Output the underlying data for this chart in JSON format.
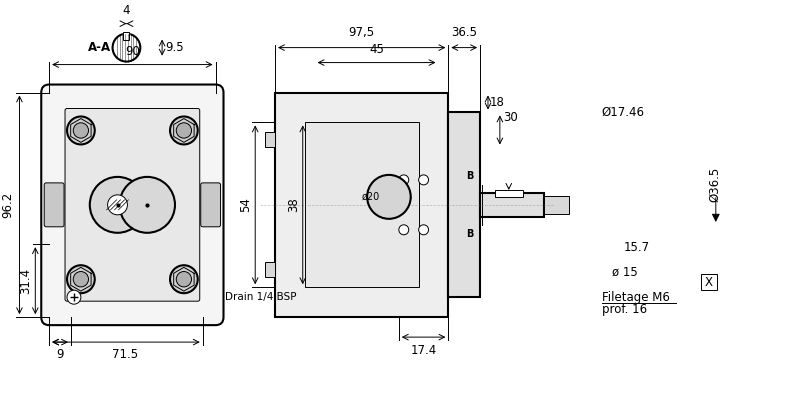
{
  "bg_color": "#ffffff",
  "line_color": "#000000",
  "dim_color": "#555555",
  "fig_width": 8.0,
  "fig_height": 4.07,
  "dpi": 100,
  "annotations": {
    "AA_label": "A-A",
    "AA_dim": "4",
    "AA_shaft_dim": "9.5",
    "dim_90": "90",
    "dim_96_2": "96.2",
    "dim_31_4": "31.4",
    "dim_9": "9",
    "dim_71_5": "71.5",
    "drain": "Drain 1/4 BSP",
    "dim_97_5": "97,5",
    "dim_45": "45",
    "dim_36_5": "36.5",
    "dim_30": "30",
    "dim_18": "18",
    "dim_54": "54",
    "dim_38": "38",
    "dim_phi20": "ø20",
    "dim_17_4": "17.4",
    "dim_phi17_46": "Ø17.46",
    "dim_phi36_5": "Ø36.5",
    "dim_15_7": "15.7",
    "dim_phi15": "ø 15",
    "filetage": "Filetage M6",
    "prof16": "prof. 16",
    "BB_label": "B",
    "x_label": "X"
  }
}
